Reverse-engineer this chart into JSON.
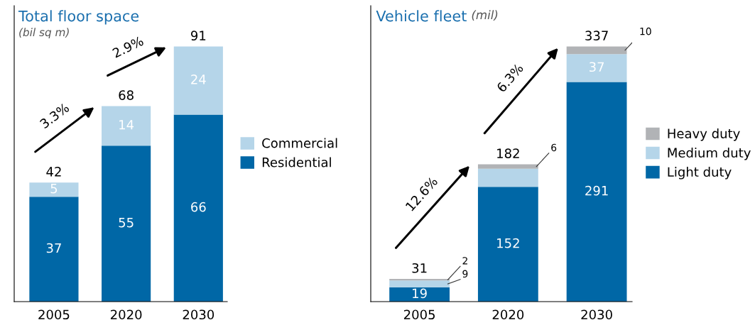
{
  "chart_data": [
    {
      "type": "bar",
      "title": "Total floor space",
      "subtitle": "(bil sq m)",
      "categories": [
        "2005",
        "2020",
        "2030"
      ],
      "stacked": true,
      "data_labels": true,
      "legend": "right",
      "tick_labels": "x",
      "series": [
        {
          "name": "Residential",
          "color": "#0067a6",
          "values": [
            37,
            55,
            66
          ]
        },
        {
          "name": "Commercial",
          "color": "#b5d5e9",
          "values": [
            5,
            14,
            24
          ]
        }
      ],
      "totals": [
        "42",
        "68",
        "91"
      ],
      "annotations": [
        "3.3%",
        "2.9%"
      ]
    },
    {
      "type": "bar",
      "title": "Vehicle fleet",
      "subtitle": "(mil)",
      "categories": [
        "2005",
        "2020",
        "2030"
      ],
      "stacked": true,
      "legend": "right",
      "tick_labels": "x",
      "series": [
        {
          "name": "Light duty",
          "color": "#0067a6",
          "values": [
            19,
            152,
            291
          ],
          "value_labels": [
            "19",
            "152",
            "291"
          ]
        },
        {
          "name": "Medium duty",
          "color": "#b5d5e9",
          "values": [
            9,
            24,
            37
          ],
          "value_labels": [
            "9",
            null,
            "37"
          ]
        },
        {
          "name": "Heavy duty",
          "color": "#b1b3b6",
          "values": [
            2,
            6,
            10
          ],
          "value_labels": [
            "2",
            "6",
            "10"
          ]
        }
      ],
      "totals": [
        "31",
        "182",
        "337"
      ],
      "annotations": [
        "12.6%",
        "6.3%"
      ]
    }
  ]
}
